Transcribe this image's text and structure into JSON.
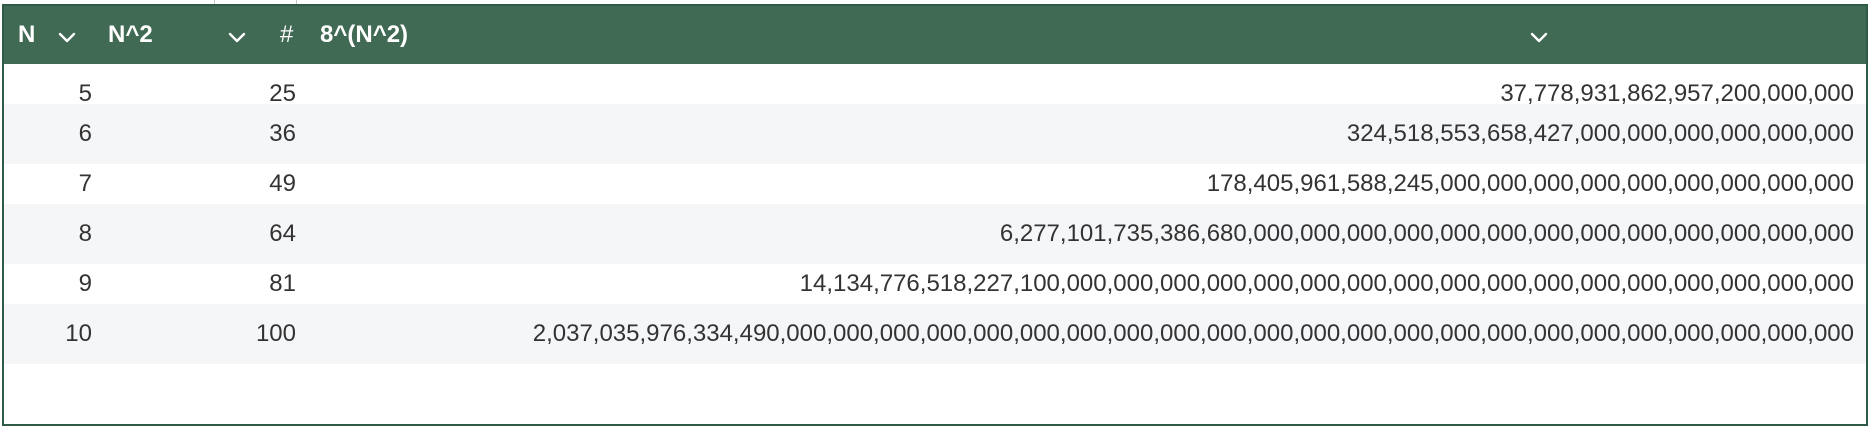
{
  "columns": [
    {
      "label": "N",
      "type_icon": "chevron-down-icon"
    },
    {
      "label": "N^2",
      "type_icon": "chevron-down-icon"
    },
    {
      "label": "8^(N^2)",
      "type_prefix": "#",
      "type_icon": "chevron-down-icon"
    }
  ],
  "rows": [
    {
      "n": "5",
      "n2": "25",
      "value": "37,778,931,862,957,200,000,000"
    },
    {
      "n": "6",
      "n2": "36",
      "value": "324,518,553,658,427,000,000,000,000,000,000"
    },
    {
      "n": "7",
      "n2": "49",
      "value": "178,405,961,588,245,000,000,000,000,000,000,000,000,000"
    },
    {
      "n": "8",
      "n2": "64",
      "value": "6,277,101,735,386,680,000,000,000,000,000,000,000,000,000,000,000,000,000"
    },
    {
      "n": "9",
      "n2": "81",
      "value": "14,134,776,518,227,100,000,000,000,000,000,000,000,000,000,000,000,000,000,000,000,000,000"
    },
    {
      "n": "10",
      "n2": "100",
      "value": "2,037,035,976,334,490,000,000,000,000,000,000,000,000,000,000,000,000,000,000,000,000,000,000,000,000,000,000,000"
    }
  ],
  "colors": {
    "header_bg": "#416a55",
    "border": "#2f5a46",
    "alt_row": "#f5f6f8",
    "text": "#333333"
  }
}
